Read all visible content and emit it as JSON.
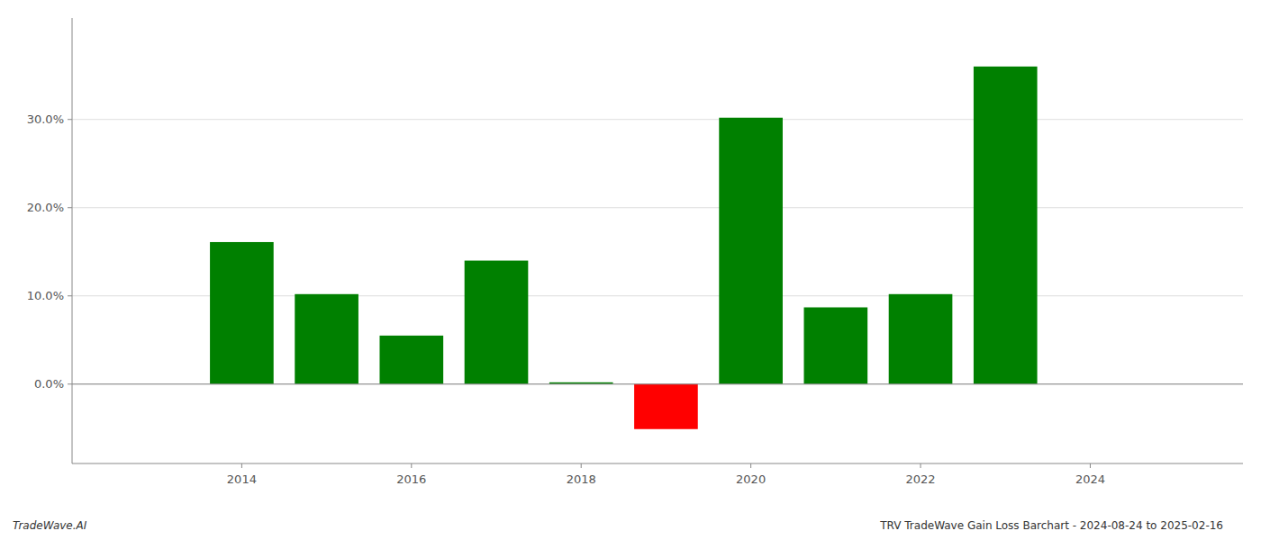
{
  "chart_data": {
    "type": "bar",
    "title": "TRV TradeWave Gain Loss Barchart - 2024-08-24 to 2025-02-16",
    "annotations": [
      "TradeWave.AI"
    ],
    "x": [
      2014,
      2015,
      2016,
      2017,
      2018,
      2019,
      2020,
      2021,
      2022,
      2023
    ],
    "values": [
      0.161,
      0.102,
      0.055,
      0.14,
      0.002,
      -0.051,
      0.302,
      0.087,
      0.102,
      0.36
    ],
    "colors": [
      "#008000",
      "#008000",
      "#008000",
      "#008000",
      "#008000",
      "#ff0000",
      "#008000",
      "#008000",
      "#008000",
      "#008000"
    ],
    "xlim": [
      2012.0,
      2025.8
    ],
    "xticks": [
      2014,
      2016,
      2018,
      2020,
      2022,
      2024
    ],
    "ylim": [
      -0.09,
      0.415
    ],
    "yticks": [
      {
        "value": 0.0,
        "label": "0.0%"
      },
      {
        "value": 0.1,
        "label": "10.0%"
      },
      {
        "value": 0.2,
        "label": "20.0%"
      },
      {
        "value": 0.3,
        "label": "30.0%"
      }
    ],
    "grid": true
  }
}
